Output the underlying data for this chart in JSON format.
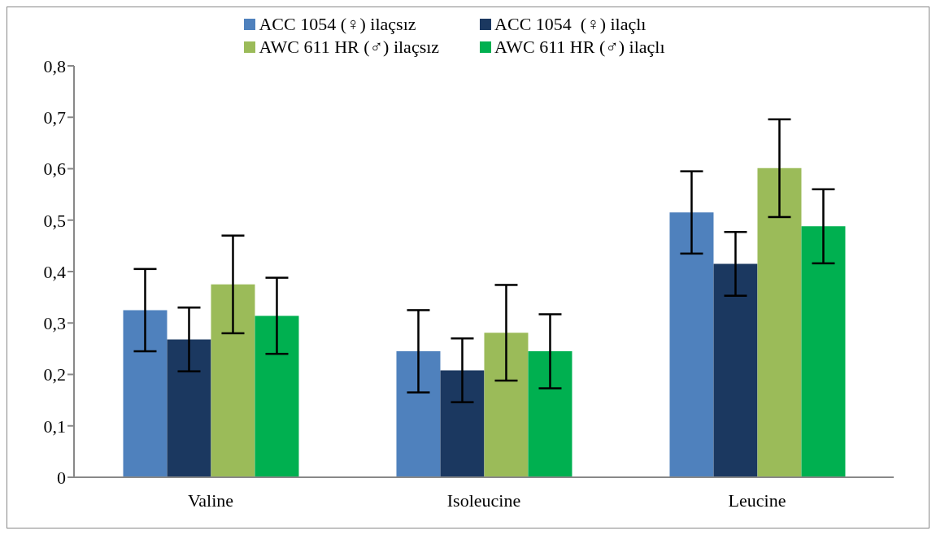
{
  "chart_data": {
    "type": "bar",
    "categories": [
      "Valine",
      "Isoleucine",
      "Leucine"
    ],
    "series": [
      {
        "name": "ACC 1054 (♀) ilaçsız",
        "color": "#4f81bd",
        "values": [
          0.325,
          0.245,
          0.515
        ],
        "errors": [
          0.08,
          0.08,
          0.08
        ]
      },
      {
        "name": "ACC 1054  (♀) ilaçlı",
        "color": "#1b3860",
        "values": [
          0.268,
          0.208,
          0.415
        ],
        "errors": [
          0.062,
          0.062,
          0.062
        ]
      },
      {
        "name": "AWC 611 HR (♂) ilaçsız",
        "color": "#9bbb59",
        "values": [
          0.375,
          0.281,
          0.601
        ],
        "errors": [
          0.095,
          0.093,
          0.095
        ]
      },
      {
        "name": "AWC 611 HR (♂) ilaçlı",
        "color": "#00b050",
        "values": [
          0.314,
          0.245,
          0.488
        ],
        "errors": [
          0.074,
          0.072,
          0.072
        ]
      }
    ],
    "ylim": [
      0,
      0.8
    ],
    "yticks": [
      0,
      {
        "value": 0.1,
        "label": "0,1"
      },
      {
        "value": 0.2,
        "label": "0,2"
      },
      {
        "value": 0.3,
        "label": "0,3"
      },
      {
        "value": 0.4,
        "label": "0,4"
      },
      {
        "value": 0.5,
        "label": "0,5"
      },
      {
        "value": 0.6,
        "label": "0,6"
      },
      {
        "value": 0.7,
        "label": "0,7"
      },
      {
        "value": 0.8,
        "label": "0,8"
      }
    ],
    "legend": "top",
    "grid": false
  }
}
